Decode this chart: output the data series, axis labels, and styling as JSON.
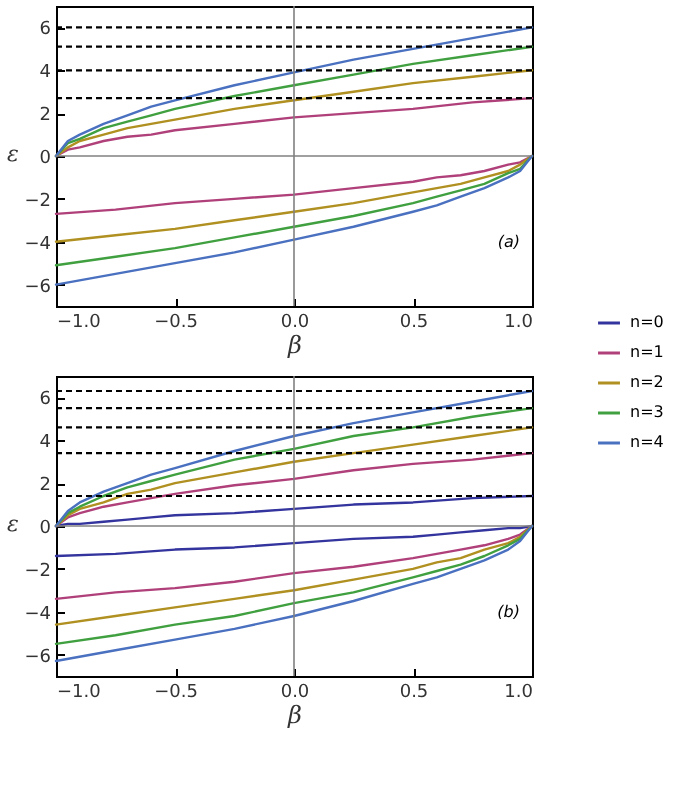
{
  "chart_data": [
    {
      "type": "line",
      "xlabel": "β",
      "ylabel": "ε",
      "annotations": [
        "(a)"
      ],
      "xlim": [
        -1,
        1
      ],
      "ylim": [
        -7,
        7
      ],
      "xticks": [
        {
          "value": -1,
          "label": "−1.0"
        },
        {
          "value": -0.5,
          "label": "−0.5"
        },
        {
          "value": 0,
          "label": "0.0"
        },
        {
          "value": 0.5,
          "label": "0.5"
        },
        {
          "value": 1,
          "label": "1.0"
        }
      ],
      "yticks": [
        {
          "value": -6,
          "label": "−6"
        },
        {
          "value": -4,
          "label": "−4"
        },
        {
          "value": -2,
          "label": "−2"
        },
        0,
        2,
        4,
        6
      ],
      "x": [
        -1,
        -0.95,
        -0.9,
        -0.8,
        -0.7,
        -0.6,
        -0.5,
        -0.25,
        0,
        0.25,
        0.5,
        0.75,
        1
      ],
      "legend": "bottom right",
      "grid": false,
      "ref_lines": [
        {
          "axis": "x",
          "value": 0,
          "color": "#808080",
          "line_style": "solid"
        },
        {
          "axis": "y",
          "value": 0,
          "color": "#808080",
          "line_style": "solid"
        },
        {
          "axis": "y",
          "value": 2.7,
          "color": "#000000",
          "line_style": "dashed"
        },
        {
          "axis": "y",
          "value": 4.0,
          "color": "#000000",
          "line_style": "dashed"
        },
        {
          "axis": "y",
          "value": 5.1,
          "color": "#000000",
          "line_style": "dashed"
        },
        {
          "axis": "y",
          "value": 6.0,
          "color": "#000000",
          "line_style": "dashed"
        }
      ],
      "series": [
        {
          "name": "n=1",
          "color": "#b0407a",
          "values": [
            0,
            0.3,
            0.4,
            0.7,
            0.9,
            1.0,
            1.2,
            1.5,
            1.8,
            2.0,
            2.2,
            2.5,
            2.7
          ]
        },
        {
          "name": "n=2",
          "color": "#b09020",
          "values": [
            0,
            0.4,
            0.7,
            1.0,
            1.3,
            1.5,
            1.7,
            2.2,
            2.6,
            3.0,
            3.4,
            3.7,
            4.0
          ]
        },
        {
          "name": "n=3",
          "color": "#40a040",
          "values": [
            0,
            0.6,
            0.8,
            1.3,
            1.6,
            1.9,
            2.2,
            2.8,
            3.3,
            3.8,
            4.3,
            4.7,
            5.1
          ]
        },
        {
          "name": "n=4",
          "color": "#4a70c0",
          "values": [
            0,
            0.7,
            1.0,
            1.5,
            1.9,
            2.3,
            2.6,
            3.3,
            3.9,
            4.5,
            5.0,
            5.5,
            6.0
          ]
        },
        {
          "color": "#b0407a",
          "x": [
            -1,
            -0.75,
            -0.5,
            -0.25,
            0,
            0.25,
            0.5,
            0.6,
            0.7,
            0.8,
            0.9,
            0.95,
            1
          ],
          "values": [
            -2.7,
            -2.5,
            -2.2,
            -2.0,
            -1.8,
            -1.5,
            -1.2,
            -1.0,
            -0.9,
            -0.7,
            -0.4,
            -0.3,
            0
          ]
        },
        {
          "color": "#b09020",
          "x": [
            -1,
            -0.75,
            -0.5,
            -0.25,
            0,
            0.25,
            0.5,
            0.6,
            0.7,
            0.8,
            0.9,
            0.95,
            1
          ],
          "values": [
            -4.0,
            -3.7,
            -3.4,
            -3.0,
            -2.6,
            -2.2,
            -1.7,
            -1.5,
            -1.3,
            -1.0,
            -0.7,
            -0.4,
            0
          ]
        },
        {
          "color": "#40a040",
          "x": [
            -1,
            -0.75,
            -0.5,
            -0.25,
            0,
            0.25,
            0.5,
            0.6,
            0.7,
            0.8,
            0.9,
            0.95,
            1
          ],
          "values": [
            -5.1,
            -4.7,
            -4.3,
            -3.8,
            -3.3,
            -2.8,
            -2.2,
            -1.9,
            -1.6,
            -1.3,
            -0.8,
            -0.6,
            0
          ]
        },
        {
          "color": "#4a70c0",
          "x": [
            -1,
            -0.75,
            -0.5,
            -0.25,
            0,
            0.25,
            0.5,
            0.6,
            0.7,
            0.8,
            0.9,
            0.95,
            1
          ],
          "values": [
            -6.0,
            -5.5,
            -5.0,
            -4.5,
            -3.9,
            -3.3,
            -2.6,
            -2.3,
            -1.9,
            -1.5,
            -1.0,
            -0.7,
            0
          ]
        }
      ]
    },
    {
      "type": "line",
      "xlabel": "β",
      "ylabel": "ε",
      "annotations": [
        "(b)"
      ],
      "xlim": [
        -1,
        1
      ],
      "ylim": [
        -7,
        7
      ],
      "xticks": [
        {
          "value": -1,
          "label": "−1.0"
        },
        {
          "value": -0.5,
          "label": "−0.5"
        },
        {
          "value": 0,
          "label": "0.0"
        },
        {
          "value": 0.5,
          "label": "0.5"
        },
        {
          "value": 1,
          "label": "1.0"
        }
      ],
      "yticks": [
        {
          "value": -6,
          "label": "−6"
        },
        {
          "value": -4,
          "label": "−4"
        },
        {
          "value": -2,
          "label": "−2"
        },
        0,
        2,
        4,
        6
      ],
      "x": [
        -1,
        -0.95,
        -0.9,
        -0.8,
        -0.7,
        -0.6,
        -0.5,
        -0.25,
        0,
        0.25,
        0.5,
        0.75,
        1
      ],
      "legend": "top right",
      "grid": false,
      "ref_lines": [
        {
          "axis": "x",
          "value": 0,
          "color": "#808080",
          "line_style": "solid"
        },
        {
          "axis": "y",
          "value": 0,
          "color": "#808080",
          "line_style": "solid"
        },
        {
          "axis": "y",
          "value": 1.4,
          "color": "#000000",
          "line_style": "dashed"
        },
        {
          "axis": "y",
          "value": 3.4,
          "color": "#000000",
          "line_style": "dashed"
        },
        {
          "axis": "y",
          "value": 4.6,
          "color": "#000000",
          "line_style": "dashed"
        },
        {
          "axis": "y",
          "value": 5.5,
          "color": "#000000",
          "line_style": "dashed"
        },
        {
          "axis": "y",
          "value": 6.3,
          "color": "#000000",
          "line_style": "dashed"
        }
      ],
      "series": [
        {
          "name": "n=0",
          "color": "#34349e",
          "values": [
            0,
            0.1,
            0.1,
            0.2,
            0.3,
            0.4,
            0.5,
            0.6,
            0.8,
            1.0,
            1.1,
            1.3,
            1.4
          ]
        },
        {
          "name": "n=1",
          "color": "#b0407a",
          "values": [
            0,
            0.4,
            0.6,
            0.9,
            1.1,
            1.3,
            1.5,
            1.9,
            2.2,
            2.6,
            2.9,
            3.1,
            3.4
          ]
        },
        {
          "name": "n=2",
          "color": "#b09020",
          "values": [
            0,
            0.5,
            0.8,
            1.1,
            1.5,
            1.7,
            2.0,
            2.5,
            3.0,
            3.4,
            3.8,
            4.2,
            4.6
          ]
        },
        {
          "name": "n=3",
          "color": "#40a040",
          "values": [
            0,
            0.6,
            0.9,
            1.4,
            1.8,
            2.1,
            2.4,
            3.1,
            3.6,
            4.2,
            4.6,
            5.1,
            5.5
          ]
        },
        {
          "name": "n=4",
          "color": "#4a70c0",
          "values": [
            0,
            0.7,
            1.1,
            1.6,
            2.0,
            2.4,
            2.7,
            3.5,
            4.2,
            4.8,
            5.3,
            5.8,
            6.3
          ]
        },
        {
          "color": "#34349e",
          "x": [
            -1,
            -0.75,
            -0.5,
            -0.25,
            0,
            0.25,
            0.5,
            0.6,
            0.7,
            0.8,
            0.9,
            0.95,
            1
          ],
          "values": [
            -1.4,
            -1.3,
            -1.1,
            -1.0,
            -0.8,
            -0.6,
            -0.5,
            -0.4,
            -0.3,
            -0.2,
            -0.1,
            -0.1,
            0
          ]
        },
        {
          "color": "#b0407a",
          "x": [
            -1,
            -0.75,
            -0.5,
            -0.25,
            0,
            0.25,
            0.5,
            0.6,
            0.7,
            0.8,
            0.9,
            0.95,
            1
          ],
          "values": [
            -3.4,
            -3.1,
            -2.9,
            -2.6,
            -2.2,
            -1.9,
            -1.5,
            -1.3,
            -1.1,
            -0.9,
            -0.6,
            -0.4,
            0
          ]
        },
        {
          "color": "#b09020",
          "x": [
            -1,
            -0.75,
            -0.5,
            -0.25,
            0,
            0.25,
            0.5,
            0.6,
            0.7,
            0.8,
            0.9,
            0.95,
            1
          ],
          "values": [
            -4.6,
            -4.2,
            -3.8,
            -3.4,
            -3.0,
            -2.5,
            -2.0,
            -1.7,
            -1.5,
            -1.1,
            -0.8,
            -0.5,
            0
          ]
        },
        {
          "color": "#40a040",
          "x": [
            -1,
            -0.75,
            -0.5,
            -0.25,
            0,
            0.25,
            0.5,
            0.6,
            0.7,
            0.8,
            0.9,
            0.95,
            1
          ],
          "values": [
            -5.5,
            -5.1,
            -4.6,
            -4.2,
            -3.6,
            -3.1,
            -2.4,
            -2.1,
            -1.8,
            -1.4,
            -0.9,
            -0.6,
            0
          ]
        },
        {
          "color": "#4a70c0",
          "x": [
            -1,
            -0.75,
            -0.5,
            -0.25,
            0,
            0.25,
            0.5,
            0.6,
            0.7,
            0.8,
            0.9,
            0.95,
            1
          ],
          "values": [
            -6.3,
            -5.8,
            -5.3,
            -4.8,
            -4.2,
            -3.5,
            -2.7,
            -2.4,
            -2.0,
            -1.6,
            -1.1,
            -0.7,
            0
          ]
        }
      ]
    }
  ]
}
